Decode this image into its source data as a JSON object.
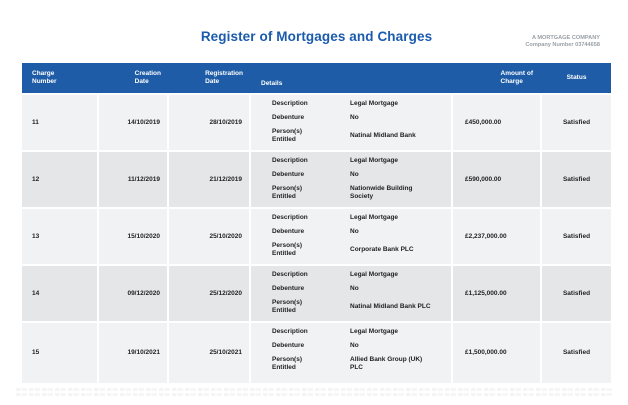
{
  "page": {
    "title": "Register of Mortgages and Charges",
    "company_name": "A MORTGAGE COMPANY",
    "company_number": "Company Number 03744658"
  },
  "colors": {
    "accent_blue": "#1e5ca7",
    "title_blue": "#1b5bad",
    "row_light": "#f1f2f4",
    "row_dark": "#e5e6e8"
  },
  "table": {
    "headers": [
      "Charge\nNumber",
      "Creation\nDate",
      "Registration\nDate",
      "Details",
      "Amount of\nCharge",
      "Status"
    ],
    "detail_labels": {
      "description": "Description",
      "debenture": "Debenture",
      "persons": "Person(s)\nEntitled"
    },
    "rows": [
      {
        "charge": "11",
        "creation": "14/10/2019",
        "registration": "28/10/2019",
        "description": "Legal Mortgage",
        "debenture": "No",
        "persons": "Natinal Midland Bank",
        "amount": "£450,000.00",
        "status": "Satisfied"
      },
      {
        "charge": "12",
        "creation": "11/12/2019",
        "registration": "21/12/2019",
        "description": "Legal Mortgage",
        "debenture": "No",
        "persons": "Nationwide Building\nSociety",
        "amount": "£590,000.00",
        "status": "Satisfied"
      },
      {
        "charge": "13",
        "creation": "15/10/2020",
        "registration": "25/10/2020",
        "description": "Legal Mortgage",
        "debenture": "No",
        "persons": "Corporate Bank PLC",
        "amount": "£2,237,000.00",
        "status": "Satisfied"
      },
      {
        "charge": "14",
        "creation": "09/12/2020",
        "registration": "25/12/2020",
        "description": "Legal Mortgage",
        "debenture": "No",
        "persons": "Natinal Midland Bank PLC",
        "amount": "£1,125,000.00",
        "status": "Satisfied"
      },
      {
        "charge": "15",
        "creation": "19/10/2021",
        "registration": "25/10/2021",
        "description": "Legal Mortgage",
        "debenture": "No",
        "persons": "Allied Bank Group (UK)\nPLC",
        "amount": "£1,500,000.00",
        "status": "Satisfied"
      }
    ]
  }
}
